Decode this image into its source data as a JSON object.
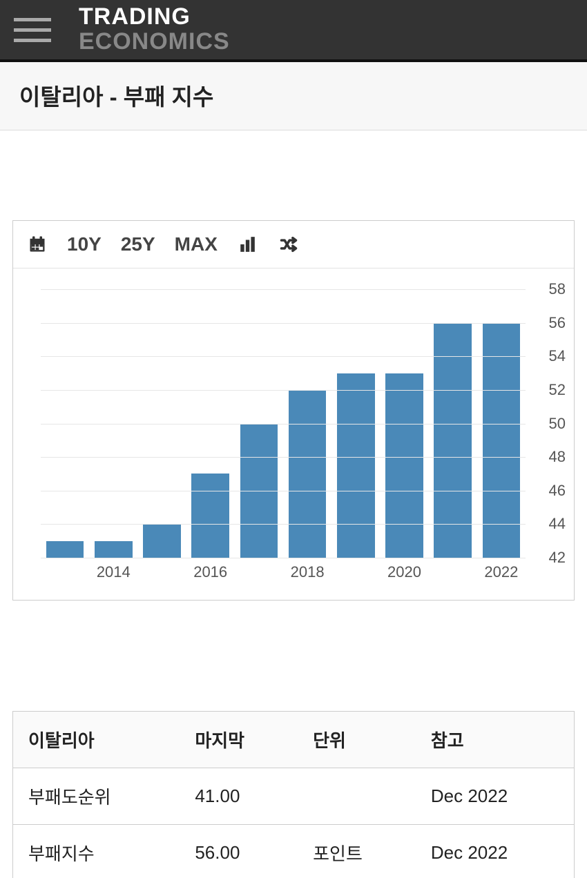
{
  "header": {
    "logo_line1": "TRADING",
    "logo_line2": "ECONOMICS"
  },
  "page": {
    "title": "이탈리아 - 부패 지수"
  },
  "toolbar": {
    "ranges": [
      "10Y",
      "25Y",
      "MAX"
    ]
  },
  "chart": {
    "type": "bar",
    "years": [
      2013,
      2014,
      2015,
      2016,
      2017,
      2018,
      2019,
      2020,
      2021,
      2022
    ],
    "values": [
      43,
      43,
      44,
      47,
      50,
      52,
      53,
      53,
      56,
      56
    ],
    "bar_color": "#4a89b8",
    "grid_color": "#e6e6e6",
    "axis_color": "#bbbbbb",
    "background": "#ffffff",
    "ylim": [
      42,
      58
    ],
    "ytick_step": 2,
    "yticks": [
      42,
      44,
      46,
      48,
      50,
      52,
      54,
      56,
      58
    ],
    "xticks": [
      2014,
      2016,
      2018,
      2020,
      2022
    ],
    "bar_width_ratio": 0.78,
    "tick_fontsize": 22,
    "tick_color": "#555555"
  },
  "table": {
    "columns": [
      "이탈리아",
      "마지막",
      "단위",
      "참고"
    ],
    "rows": [
      [
        "부패도순위",
        "41.00",
        "",
        "Dec 2022"
      ],
      [
        "부패지수",
        "56.00",
        "포인트",
        "Dec 2022"
      ]
    ]
  }
}
